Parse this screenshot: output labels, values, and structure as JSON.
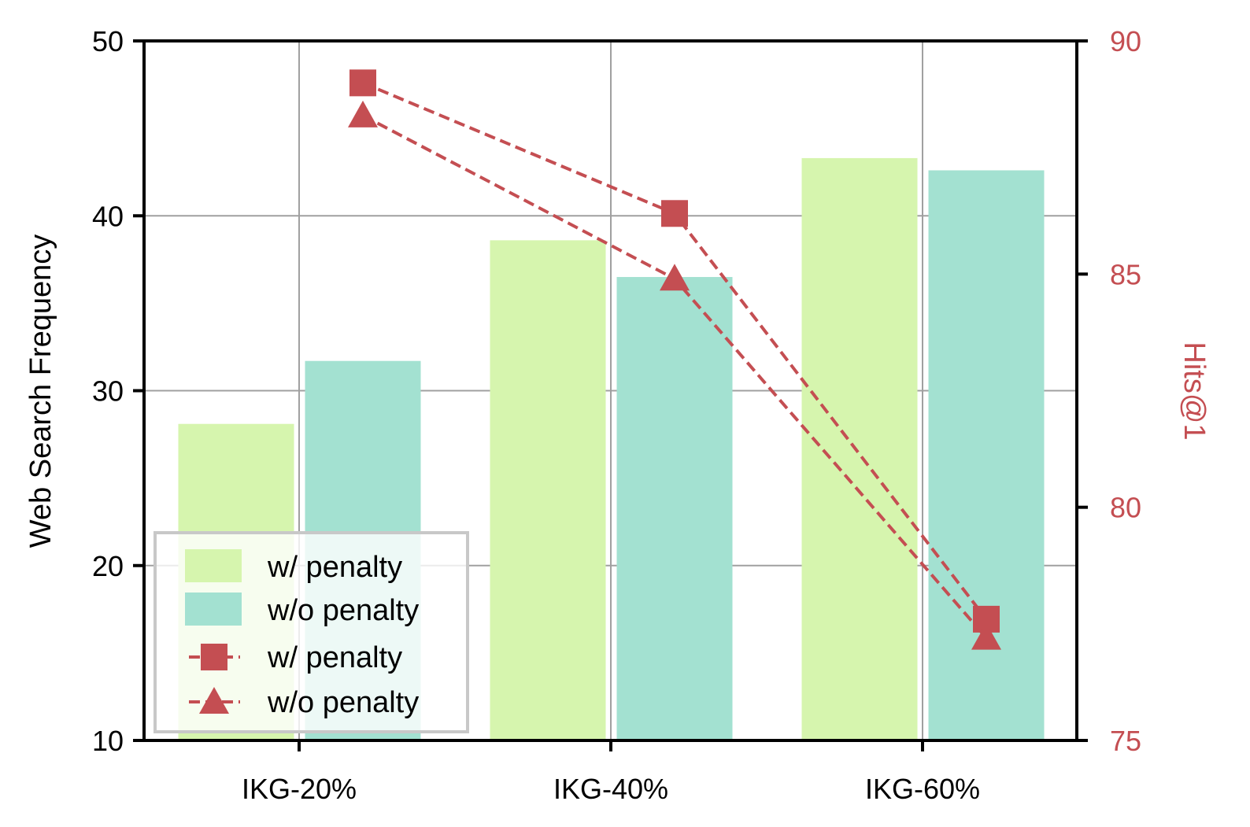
{
  "chart_data": {
    "type": "bar+line",
    "categories": [
      "IKG-20%",
      "IKG-40%",
      "IKG-60%"
    ],
    "ylabel": "Web Search Frequency",
    "ylabel_right": "Hits@1",
    "ylim": [
      10,
      50
    ],
    "ylim_right": [
      75,
      90
    ],
    "yticks": [
      "10",
      "20",
      "30",
      "40",
      "50"
    ],
    "yticks_right": [
      "75",
      "80",
      "85",
      "90"
    ],
    "grid": true,
    "legend_position": "bottom-left",
    "bar_series": [
      {
        "name": "w/ penalty",
        "values": [
          28.1,
          38.6,
          43.3
        ],
        "color": "#d6f5ae"
      },
      {
        "name": "w/o penalty",
        "values": [
          31.7,
          36.5,
          42.6
        ],
        "color": "#a3e1d1"
      }
    ],
    "line_series": [
      {
        "name": "w/ penalty",
        "marker": "square",
        "values": [
          89.1,
          86.3,
          77.6
        ],
        "color": "#c44e52"
      },
      {
        "name": "w/o penalty",
        "marker": "triangle",
        "values": [
          88.4,
          84.9,
          77.2
        ],
        "color": "#c44e52"
      }
    ]
  }
}
